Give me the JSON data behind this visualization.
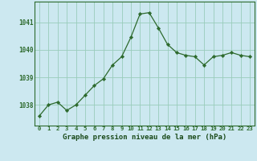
{
  "x": [
    0,
    1,
    2,
    3,
    4,
    5,
    6,
    7,
    8,
    9,
    10,
    11,
    12,
    13,
    14,
    15,
    16,
    17,
    18,
    19,
    20,
    21,
    22,
    23
  ],
  "y": [
    1037.6,
    1038.0,
    1038.1,
    1037.8,
    1038.0,
    1038.35,
    1038.7,
    1038.95,
    1039.45,
    1039.75,
    1040.45,
    1041.3,
    1041.35,
    1040.8,
    1040.2,
    1039.9,
    1039.8,
    1039.75,
    1039.45,
    1039.75,
    1039.8,
    1039.9,
    1039.8,
    1039.75
  ],
  "line_color": "#2d6a2d",
  "marker_color": "#2d6a2d",
  "bg_color": "#cce8f0",
  "grid_color": "#99ccbb",
  "xlabel": "Graphe pression niveau de la mer (hPa)",
  "xlabel_color": "#1a4a1a",
  "ylabel_ticks": [
    1038,
    1039,
    1040,
    1041
  ],
  "xlim": [
    -0.5,
    23.5
  ],
  "ylim": [
    1037.25,
    1041.75
  ],
  "tick_color": "#2d6a2d",
  "xtick_fontsize": 5.2,
  "ytick_fontsize": 5.5,
  "xlabel_fontsize": 6.5
}
